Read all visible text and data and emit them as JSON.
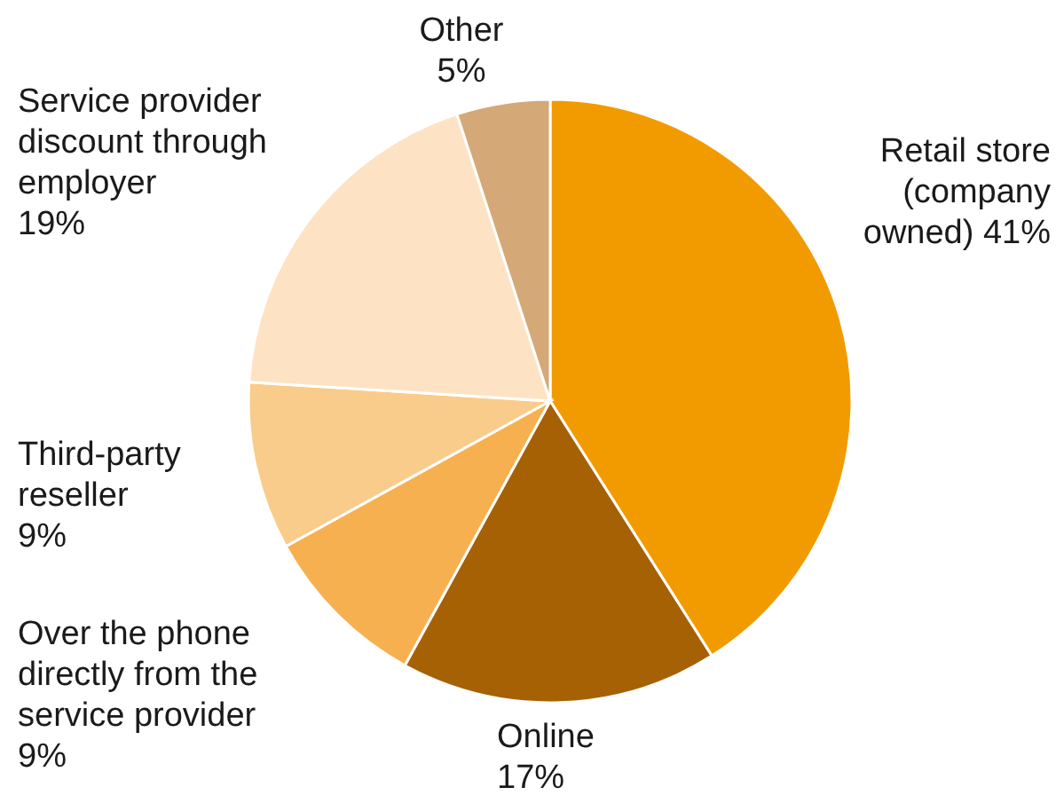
{
  "chart_data": {
    "type": "pie",
    "categories": [
      "Retail store (company owned)",
      "Online",
      "Over the phone directly from the service provider",
      "Third-party reseller",
      "Service provider discount through employer",
      "Other"
    ],
    "values": [
      41,
      17,
      9,
      9,
      19,
      5
    ],
    "value_labels": [
      "41%",
      "17%",
      "9%",
      "9%",
      "19%",
      "5%"
    ],
    "colors": [
      "#f29b00",
      "#a66105",
      "#f7b04f",
      "#f9cc8b",
      "#fde3c4",
      "#d4a877"
    ]
  }
}
